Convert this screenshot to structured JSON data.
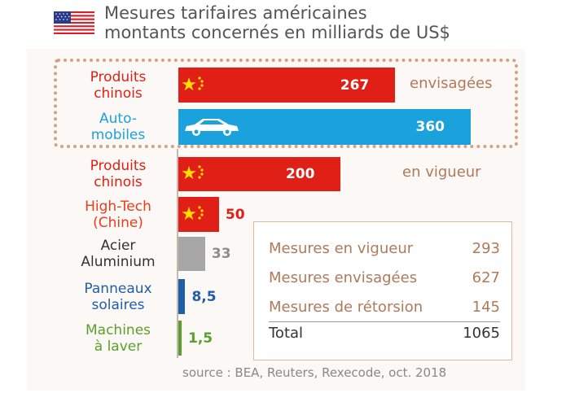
{
  "header": {
    "title_line1": "Mesures tarifaires américaines",
    "title_line2": "montants concernés en milliards de US$",
    "flag_icon": "us-flag-icon"
  },
  "colors": {
    "china_red": "#e01f17",
    "auto_blue": "#1ba2dc",
    "hightech_red": "#e01f17",
    "steel_gray": "#a6a6a6",
    "solar_blue": "#1f5fa8",
    "washer_green": "#5aa02c",
    "accent_brown": "#b07a5a"
  },
  "chart_data": {
    "type": "bar",
    "orientation": "horizontal",
    "title": "Mesures tarifaires américaines",
    "subtitle": "montants concernés en milliards de US$",
    "categories": [
      "Produits\nchinois",
      "Auto-\nmobiles",
      "Produits\nchinois",
      "High-Tech\n(Chine)",
      "Acier\nAluminium",
      "Panneaux\nsolaires",
      "Machines\nà laver"
    ],
    "values": [
      267,
      360,
      200,
      50,
      33,
      8.5,
      1.5
    ],
    "value_labels": [
      "267",
      "360",
      "200",
      "50",
      "33",
      "8,5",
      "1,5"
    ],
    "groups": [
      {
        "label": "envisagées",
        "indices": [
          0,
          1
        ]
      },
      {
        "label": "en vigueur",
        "indices": [
          2,
          3,
          4,
          5,
          6
        ]
      }
    ],
    "icons": [
      "china-flag-icon",
      "car-icon",
      "china-flag-icon",
      "china-flag-icon",
      "",
      "",
      ""
    ],
    "xlim": [
      0,
      360
    ],
    "grid": false,
    "legend": "none",
    "source": "source : BEA, Reuters, Rexecode, oct. 2018"
  },
  "summary": {
    "rows": [
      {
        "label": "Mesures en vigueur",
        "value": "293"
      },
      {
        "label": "Mesures envisagées",
        "value": "627"
      },
      {
        "label": "Mesures de rétorsion",
        "value": "145"
      }
    ],
    "total": {
      "label": "Total",
      "value": "1065"
    }
  }
}
